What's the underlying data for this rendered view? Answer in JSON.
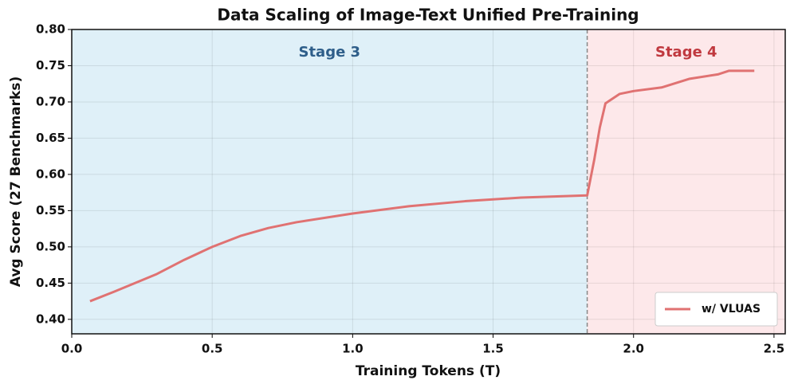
{
  "chart_data": {
    "type": "line",
    "title": "Data Scaling of Image-Text Unified Pre-Training",
    "x_label": "Training Tokens (T)",
    "y_label": "Avg Score (27 Benchmarks)",
    "regions": [
      {
        "label": "Stage 3",
        "color": "#dff0f8",
        "text_color": "#2e5e8a"
      },
      {
        "label": "Stage 4",
        "color": "#fde8ea",
        "text_color": "#c0393f"
      }
    ],
    "stage_boundary": 1.835,
    "x": [
      0.065,
      0.15,
      0.3,
      0.4,
      0.5,
      0.6,
      0.7,
      0.8,
      1.0,
      1.2,
      1.4,
      1.6,
      1.835,
      1.86,
      1.88,
      1.9,
      1.95,
      2.0,
      2.1,
      2.2,
      2.3,
      2.34,
      2.43
    ],
    "series": [
      {
        "name": "w/ VLUAS",
        "color": "#e07272",
        "values": [
          0.425,
          0.438,
          0.462,
          0.482,
          0.5,
          0.515,
          0.526,
          0.534,
          0.546,
          0.556,
          0.563,
          0.568,
          0.571,
          0.62,
          0.665,
          0.698,
          0.711,
          0.715,
          0.72,
          0.732,
          0.738,
          0.743,
          0.743
        ]
      }
    ],
    "xlim": [
      0,
      2.54
    ],
    "ylim": [
      0.38,
      0.8
    ],
    "xticks": [
      {
        "value": 0,
        "label": "0.0"
      },
      0.5,
      {
        "value": 1,
        "label": "1.0"
      },
      1.5,
      {
        "value": 2,
        "label": "2.0"
      },
      2.5
    ],
    "yticks": [
      {
        "value": 0.4,
        "label": "0.40"
      },
      0.45,
      {
        "value": 0.5,
        "label": "0.50"
      },
      0.55,
      {
        "value": 0.6,
        "label": "0.60"
      },
      0.65,
      {
        "value": 0.7,
        "label": "0.70"
      },
      0.75,
      {
        "value": 0.8,
        "label": "0.80"
      }
    ],
    "grid": true,
    "legend": "lower right"
  }
}
